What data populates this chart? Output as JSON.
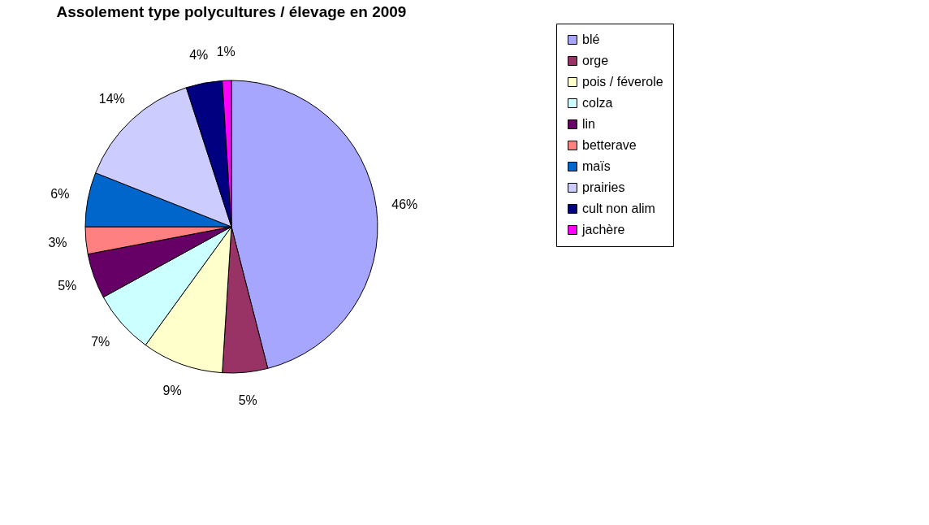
{
  "chart_data": {
    "type": "pie",
    "title": "Assolement type polycultures / élevage en 2009",
    "categories": [
      "blé",
      "orge",
      "pois / féverole",
      "colza",
      "lin",
      "betterave",
      "maïs",
      "prairies",
      "cult non alim",
      "jachère"
    ],
    "values": [
      46,
      5,
      9,
      7,
      5,
      3,
      6,
      14,
      4,
      1
    ],
    "colors": [
      "#a6a6ff",
      "#993366",
      "#ffffcc",
      "#ccffff",
      "#660066",
      "#ff8080",
      "#0066cc",
      "#ccccff",
      "#000080",
      "#ff00ff"
    ],
    "value_labels": [
      "46%",
      "5%",
      "9%",
      "7%",
      "5%",
      "3%",
      "6%",
      "14%",
      "4%",
      "1%"
    ],
    "legend": "right"
  }
}
